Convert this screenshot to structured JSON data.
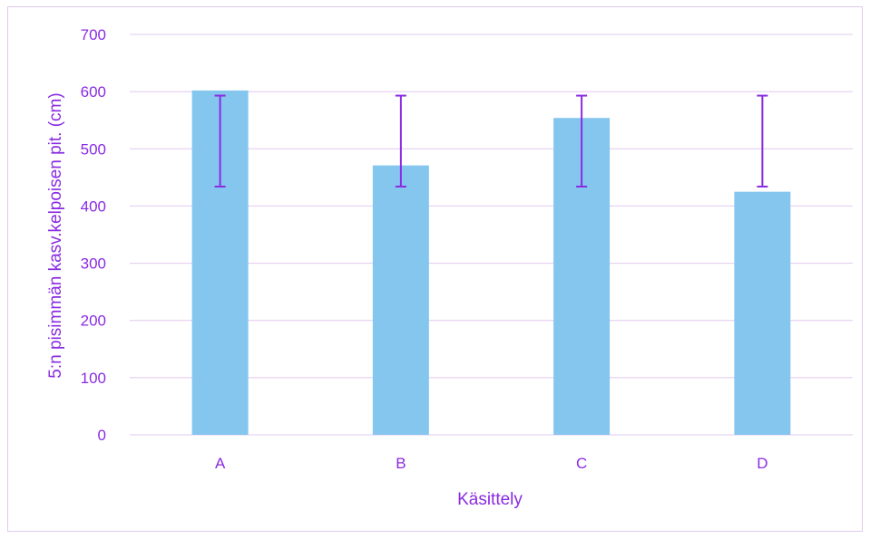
{
  "chart_data": {
    "type": "bar",
    "categories": [
      "A",
      "B",
      "C",
      "D"
    ],
    "values": [
      602,
      471,
      554,
      425
    ],
    "error_bars": [
      {
        "low": 434,
        "high": 593
      },
      {
        "low": 434,
        "high": 593
      },
      {
        "low": 434,
        "high": 593
      },
      {
        "low": 434,
        "high": 593
      }
    ],
    "title": "",
    "xlabel": "Käsittely",
    "ylabel": "5:n pisimmän kasv.kelpoisen pit. (cm)",
    "ylim": [
      0,
      700
    ],
    "yticks": [
      "0",
      "100",
      "200",
      "300",
      "400",
      "500",
      "600",
      "700"
    ],
    "grid": true,
    "legend": "none",
    "colors": {
      "bar": "#85c6ef",
      "error_bar": "#8a2be2",
      "text": "#8a2be2",
      "grid": "#e2c8ef",
      "border": "#e2c8ef"
    }
  }
}
